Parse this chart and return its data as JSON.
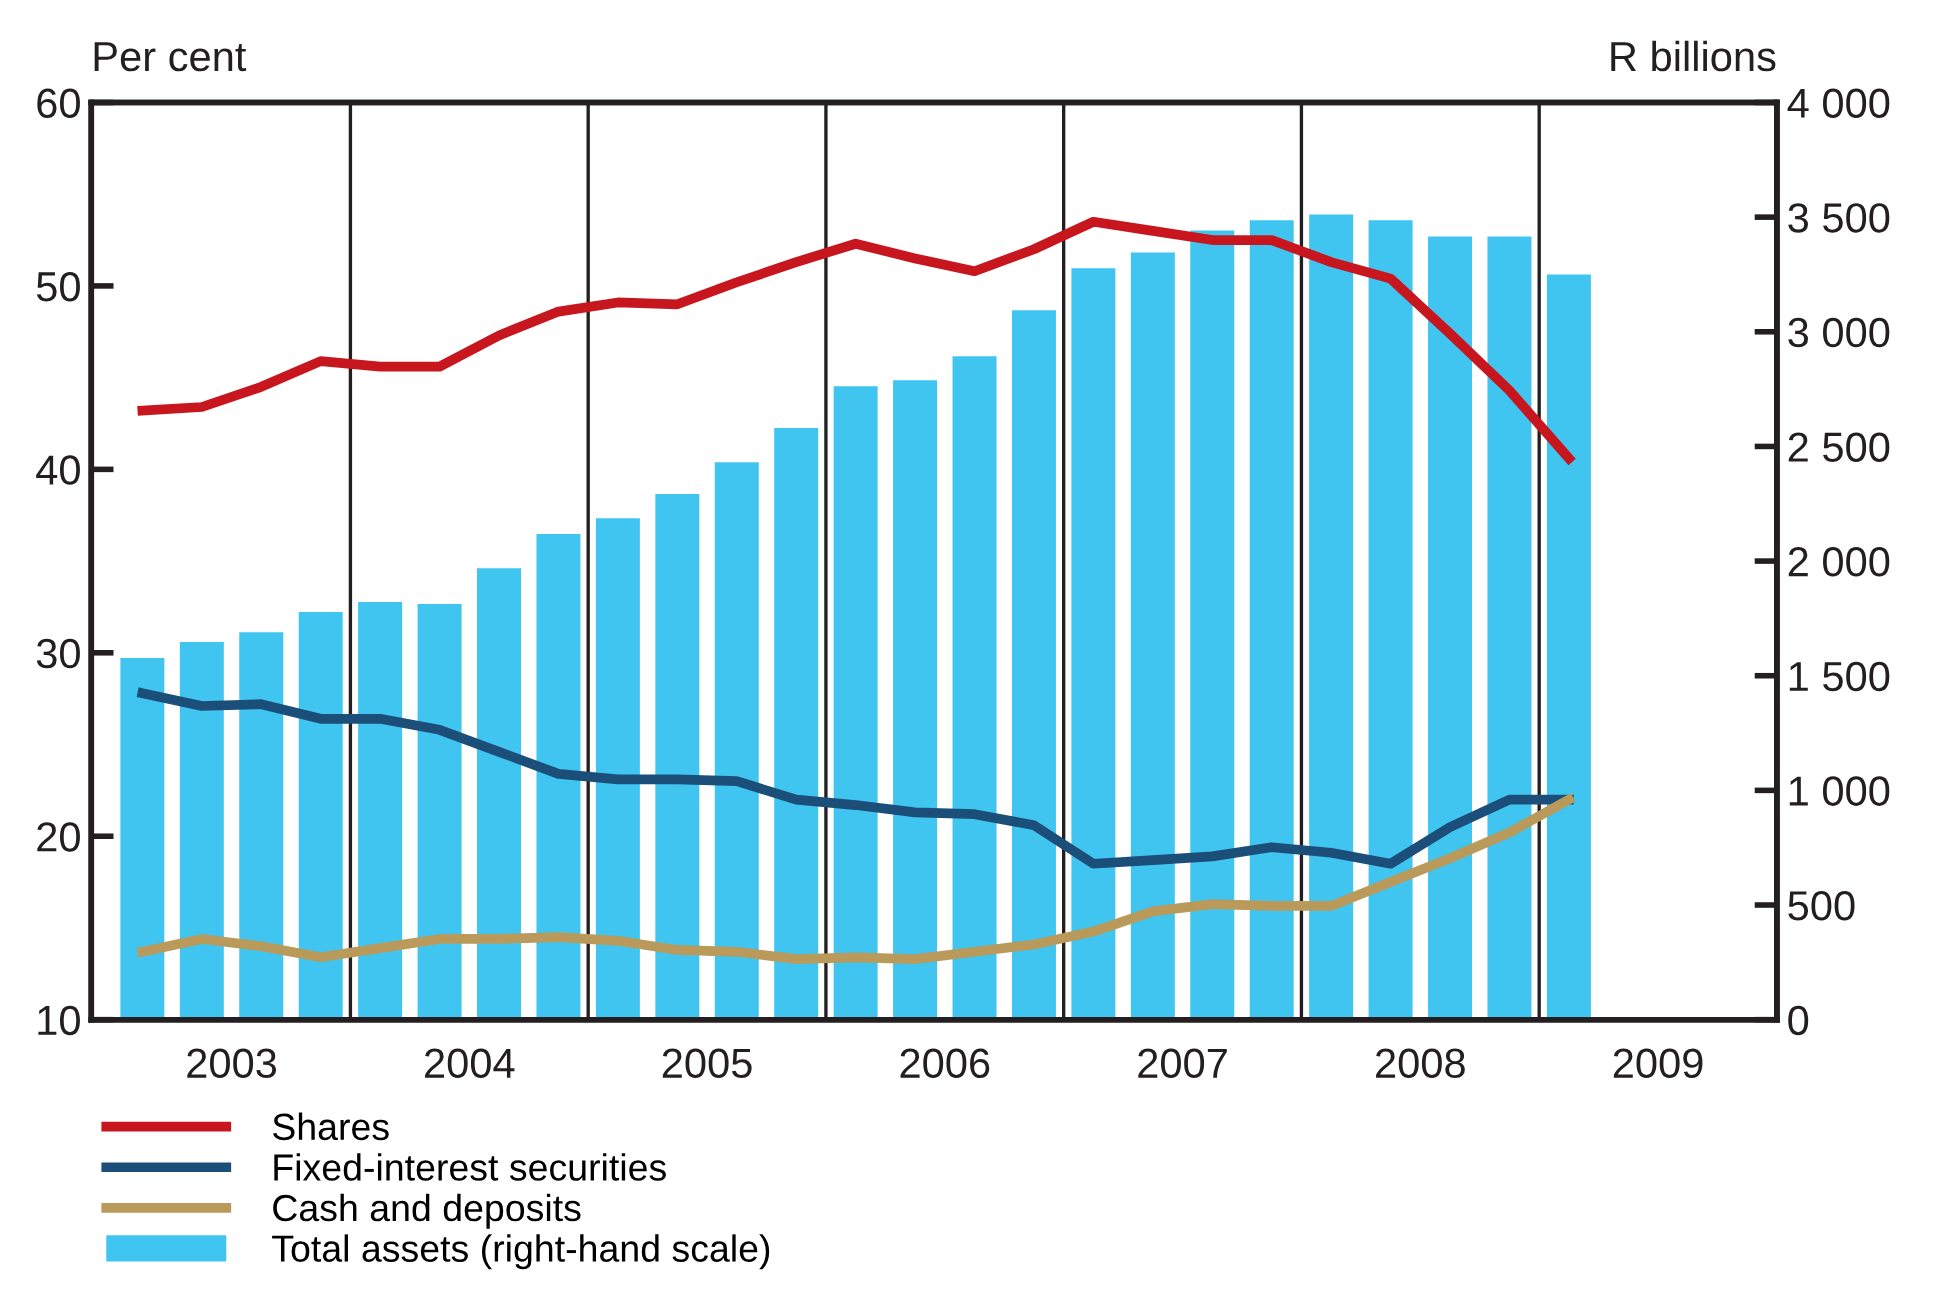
{
  "chart_data": {
    "type": "line",
    "ylabel": "Per cent",
    "y2label": "R billions",
    "x": [
      2003.125,
      2003.375,
      2003.625,
      2003.875,
      2004.125,
      2004.375,
      2004.625,
      2004.875,
      2005.125,
      2005.375,
      2005.625,
      2005.875,
      2006.125,
      2006.375,
      2006.625,
      2006.875,
      2007.125,
      2007.375,
      2007.625,
      2007.875,
      2008.125,
      2008.375,
      2008.625,
      2008.875,
      2009.125
    ],
    "xlim": [
      2002.91,
      2010.0
    ],
    "xticks": [
      {
        "value": 2003.5,
        "label": "2003"
      },
      {
        "value": 2004.5,
        "label": "2004"
      },
      {
        "value": 2005.5,
        "label": "2005"
      },
      {
        "value": 2006.5,
        "label": "2006"
      },
      {
        "value": 2007.5,
        "label": "2007"
      },
      {
        "value": 2008.5,
        "label": "2008"
      },
      {
        "value": 2009.5,
        "label": "2009"
      }
    ],
    "ylim": [
      10,
      60
    ],
    "yticks": [
      10,
      20,
      30,
      40,
      50,
      60
    ],
    "y2lim": [
      0,
      4000
    ],
    "y2ticks": [
      {
        "value": 0,
        "label": "0"
      },
      {
        "value": 500,
        "label": "500"
      },
      {
        "value": 1000,
        "label": "1 000"
      },
      {
        "value": 1500,
        "label": "1 500"
      },
      {
        "value": 2000,
        "label": "2 000"
      },
      {
        "value": 2500,
        "label": "2 500"
      },
      {
        "value": 3000,
        "label": "3 000"
      },
      {
        "value": 3500,
        "label": "3 500"
      },
      {
        "value": 4000,
        "label": "4 000"
      }
    ],
    "series": [
      {
        "name": "Shares",
        "color": "#c8161e",
        "values": [
          43.2,
          43.4,
          44.5,
          45.9,
          45.6,
          45.6,
          47.3,
          48.6,
          49.1,
          49.0,
          50.2,
          51.3,
          52.3,
          51.5,
          50.8,
          52.0,
          53.5,
          53.0,
          52.5,
          52.5,
          51.3,
          50.4,
          47.4,
          44.3,
          40.6
        ]
      },
      {
        "name": "Fixed-interest securities",
        "color": "#1b4f7a",
        "values": [
          27.8,
          27.1,
          27.2,
          26.4,
          26.4,
          25.8,
          24.6,
          23.4,
          23.1,
          23.1,
          23.0,
          22.0,
          21.7,
          21.3,
          21.2,
          20.6,
          18.5,
          18.7,
          18.9,
          19.4,
          19.1,
          18.5,
          20.5,
          22.0,
          22.0
        ]
      },
      {
        "name": "Cash and deposits",
        "color": "#b99a5a",
        "values": [
          13.7,
          14.4,
          14.0,
          13.4,
          13.9,
          14.4,
          14.4,
          14.5,
          14.3,
          13.8,
          13.7,
          13.3,
          13.4,
          13.3,
          13.7,
          14.1,
          14.8,
          15.9,
          16.3,
          16.2,
          16.2,
          17.5,
          18.8,
          20.2,
          22.0
        ]
      },
      {
        "name": "Total assets (right-hand scale)",
        "type": "bar",
        "axis": "y2",
        "color": "#40c4f0",
        "values": [
          1577,
          1647,
          1690,
          1778,
          1821,
          1813,
          1969,
          2118,
          2187,
          2292,
          2431,
          2580,
          2763,
          2789,
          2893,
          3094,
          3277,
          3346,
          3442,
          3486,
          3512,
          3486,
          3416,
          3416,
          3250
        ]
      }
    ],
    "ref_lines": [
      {
        "axis": "x",
        "value": 2004,
        "color": "#231f20"
      },
      {
        "axis": "x",
        "value": 2005,
        "color": "#231f20"
      },
      {
        "axis": "x",
        "value": 2006,
        "color": "#231f20"
      },
      {
        "axis": "x",
        "value": 2007,
        "color": "#231f20"
      },
      {
        "axis": "x",
        "value": 2008,
        "color": "#231f20"
      },
      {
        "axis": "x",
        "value": 2009,
        "color": "#231f20"
      }
    ],
    "grid": false,
    "legend": "bottom left"
  }
}
